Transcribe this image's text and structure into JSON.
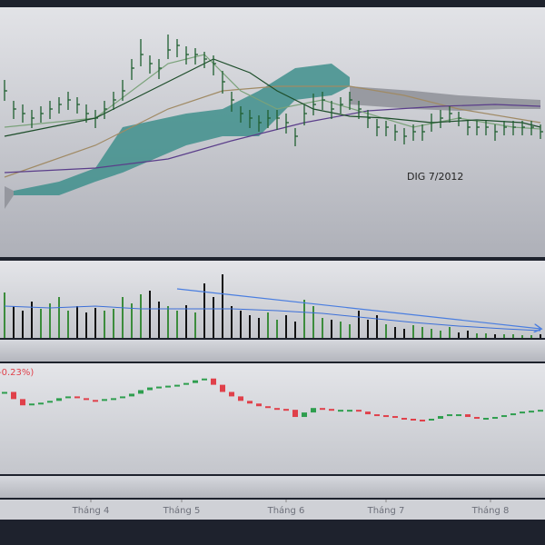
{
  "chart_data": [
    {
      "type": "ohlc",
      "annotation": "DIG 7/2012",
      "color": "#1f5f30",
      "xlim": [
        -0.5,
        59.5
      ],
      "ylim": [
        0,
        275
      ],
      "x": [
        0,
        1,
        2,
        3,
        4,
        5,
        6,
        7,
        8,
        9,
        10,
        11,
        12,
        13,
        14,
        15,
        16,
        17,
        18,
        19,
        20,
        21,
        22,
        23,
        24,
        25,
        26,
        27,
        28,
        29,
        30,
        31,
        32,
        33,
        34,
        35,
        36,
        37,
        38,
        39,
        40,
        41,
        42,
        43,
        44,
        45,
        46,
        47,
        48,
        49,
        50,
        51,
        52,
        53,
        54,
        55,
        56,
        57,
        58,
        59
      ],
      "high": [
        195,
        172,
        168,
        162,
        166,
        172,
        176,
        182,
        176,
        168,
        162,
        172,
        182,
        195,
        218,
        240,
        222,
        218,
        245,
        240,
        232,
        230,
        226,
        222,
        205,
        182,
        166,
        162,
        156,
        162,
        162,
        158,
        142,
        168,
        180,
        182,
        172,
        176,
        182,
        172,
        162,
        152,
        150,
        146,
        142,
        146,
        146,
        158,
        162,
        166,
        160,
        150,
        150,
        150,
        146,
        150,
        150,
        150,
        150,
        146
      ],
      "low": [
        172,
        152,
        148,
        142,
        148,
        152,
        158,
        162,
        158,
        148,
        142,
        152,
        162,
        172,
        195,
        210,
        202,
        196,
        218,
        220,
        212,
        212,
        208,
        200,
        180,
        160,
        148,
        142,
        138,
        142,
        140,
        136,
        122,
        145,
        156,
        162,
        152,
        158,
        162,
        152,
        142,
        133,
        133,
        128,
        124,
        128,
        128,
        138,
        142,
        148,
        144,
        134,
        134,
        134,
        128,
        134,
        134,
        134,
        134,
        130
      ],
      "close": [
        183,
        163,
        158,
        153,
        158,
        163,
        168,
        173,
        168,
        158,
        153,
        163,
        173,
        183,
        208,
        223,
        213,
        208,
        228,
        233,
        223,
        223,
        218,
        213,
        193,
        173,
        158,
        153,
        148,
        153,
        153,
        148,
        133,
        158,
        168,
        173,
        163,
        168,
        173,
        163,
        153,
        143,
        143,
        138,
        133,
        138,
        138,
        148,
        153,
        158,
        153,
        143,
        143,
        143,
        138,
        143,
        143,
        143,
        143,
        138
      ],
      "clouds": [
        {
          "color": "#3f8f8c",
          "x": [
            1,
            6,
            10,
            13,
            20,
            24,
            28,
            32,
            36,
            38
          ],
          "upper": [
            73,
            83,
            98,
            143,
            158,
            163,
            183,
            208,
            213,
            198
          ],
          "lower": [
            68,
            68,
            83,
            93,
            123,
            133,
            133,
            173,
            178,
            188
          ]
        },
        {
          "color": "#8e9098",
          "x": [
            0,
            1
          ],
          "upper": [
            78,
            73
          ],
          "lower": [
            53,
            68
          ]
        },
        {
          "color": "#8e9098",
          "x": [
            38,
            45,
            50,
            55,
            59
          ],
          "upper": [
            188,
            183,
            178,
            175,
            173
          ],
          "lower": [
            168,
            163,
            161,
            163,
            163
          ]
        }
      ],
      "overlays": [
        {
          "color": "#a08a64",
          "x": [
            0,
            10,
            18,
            24,
            30,
            38,
            44,
            50,
            56,
            59
          ],
          "values": [
            88,
            123,
            163,
            183,
            188,
            188,
            178,
            163,
            153,
            148
          ]
        },
        {
          "color": "#5a3d8a",
          "x": [
            0,
            10,
            18,
            25,
            33,
            40,
            48,
            54,
            59
          ],
          "values": [
            93,
            98,
            108,
            128,
            148,
            161,
            166,
            168,
            166
          ]
        },
        {
          "color": "#7aa27a",
          "x": [
            0,
            10,
            18,
            22,
            26,
            30,
            35,
            40,
            45,
            50,
            56,
            59
          ],
          "values": [
            143,
            153,
            213,
            223,
            183,
            163,
            173,
            158,
            143,
            153,
            143,
            141
          ]
        },
        {
          "color": "#1d4d2a",
          "x": [
            0,
            10,
            18,
            23,
            27,
            30,
            34,
            38,
            42,
            47,
            52,
            57,
            59
          ],
          "values": [
            133,
            153,
            193,
            218,
            203,
            183,
            163,
            155,
            153,
            148,
            151,
            148,
            143
          ]
        }
      ]
    },
    {
      "type": "bar",
      "up_color": "#3c8c3c",
      "down_color": "#111111",
      "xlim": [
        -0.5,
        59.5
      ],
      "ylim": [
        0,
        85
      ],
      "x": [
        0,
        1,
        2,
        3,
        4,
        5,
        6,
        7,
        8,
        9,
        10,
        11,
        12,
        13,
        14,
        15,
        16,
        17,
        18,
        19,
        20,
        21,
        22,
        23,
        24,
        25,
        26,
        27,
        28,
        29,
        30,
        31,
        32,
        33,
        34,
        35,
        36,
        37,
        38,
        39,
        40,
        41,
        42,
        43,
        44,
        45,
        46,
        47,
        48,
        49,
        50,
        51,
        52,
        53,
        54,
        55,
        56,
        57,
        58,
        59
      ],
      "values": [
        50,
        35,
        30,
        40,
        32,
        38,
        45,
        30,
        35,
        28,
        33,
        30,
        32,
        45,
        38,
        48,
        52,
        40,
        35,
        30,
        36,
        28,
        60,
        45,
        70,
        35,
        30,
        25,
        22,
        28,
        20,
        25,
        18,
        42,
        35,
        22,
        20,
        18,
        15,
        30,
        20,
        25,
        15,
        12,
        10,
        14,
        12,
        10,
        8,
        12,
        6,
        8,
        5,
        5,
        4,
        4,
        4,
        3,
        3,
        4
      ],
      "ma": {
        "color": "#3c6fd8",
        "x": [
          0,
          5,
          10,
          15,
          20,
          25,
          30,
          35,
          40,
          45,
          50,
          55,
          59
        ],
        "values": [
          35,
          33,
          35,
          32,
          32,
          32,
          30,
          27,
          22,
          17,
          13,
          10,
          8
        ]
      },
      "trend": {
        "color": "#4a7ee0",
        "x": [
          19,
          59
        ],
        "values": [
          54,
          10
        ]
      }
    },
    {
      "type": "candle",
      "legend": "-0.23%)",
      "up_color": "#2e9e4e",
      "down_color": "#e0404a",
      "xlim": [
        -0.5,
        59.5
      ],
      "ylim": [
        0,
        124
      ],
      "x": [
        0,
        1,
        2,
        3,
        4,
        5,
        6,
        7,
        8,
        9,
        10,
        11,
        12,
        13,
        14,
        15,
        16,
        17,
        18,
        19,
        20,
        21,
        22,
        23,
        24,
        25,
        26,
        27,
        28,
        29,
        30,
        31,
        32,
        33,
        34,
        35,
        36,
        37,
        38,
        39,
        40,
        41,
        42,
        43,
        44,
        45,
        46,
        47,
        48,
        49,
        50,
        51,
        52,
        53,
        54,
        55,
        56,
        57,
        58,
        59
      ],
      "values": [
        92,
        84,
        77,
        79,
        80,
        82,
        85,
        87,
        85,
        83,
        82,
        84,
        85,
        87,
        90,
        94,
        97,
        98,
        99,
        100,
        102,
        105,
        107,
        100,
        92,
        87,
        82,
        79,
        76,
        74,
        73,
        72,
        64,
        69,
        74,
        73,
        72,
        72,
        72,
        70,
        67,
        66,
        65,
        63,
        62,
        61,
        60,
        62,
        65,
        67,
        67,
        64,
        62,
        63,
        64,
        66,
        68,
        70,
        71,
        72
      ],
      "xticks": [
        {
          "value": 9.5,
          "label": "Tháng 4"
        },
        {
          "value": 19.5,
          "label": "Tháng 5"
        },
        {
          "value": 31,
          "label": "Tháng 6"
        },
        {
          "value": 42,
          "label": "Tháng 7"
        },
        {
          "value": 53.5,
          "label": "Tháng 8"
        }
      ]
    }
  ]
}
